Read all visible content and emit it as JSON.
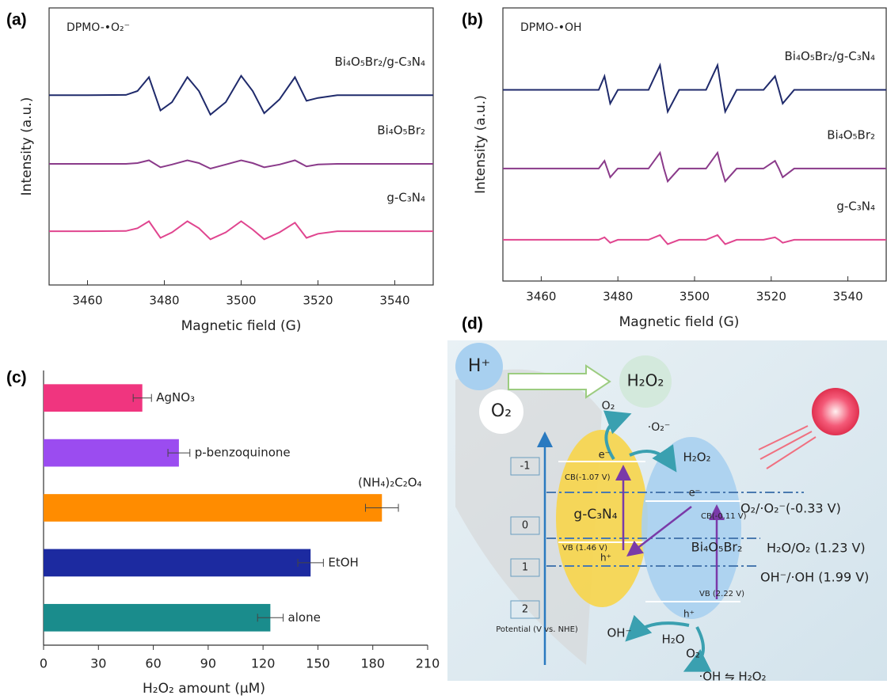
{
  "chart_data": [
    {
      "panel_label": "(a)",
      "type": "line",
      "annotation": "DPMO-•O₂⁻",
      "x_label": "Magnetic field (G)",
      "y_label": "Intensity (a.u.)",
      "xlim": [
        3450,
        3550
      ],
      "xticks": [
        3460,
        3480,
        3500,
        3520,
        3540
      ],
      "ylim": [
        0,
        100
      ],
      "x": [
        3450,
        3460,
        3470,
        3473,
        3476,
        3479,
        3482,
        3486,
        3489,
        3492,
        3496,
        3500,
        3503,
        3506,
        3510,
        3514,
        3517,
        3520,
        3525,
        3535,
        3550
      ],
      "series": [
        {
          "name": "Bi₄O₅Br₂/g-C₃N₄",
          "color": "#1f2a6b",
          "values": [
            68.5,
            68.5,
            68.6,
            70,
            75,
            63,
            66,
            75,
            70,
            61.5,
            66,
            75.5,
            70,
            62,
            67,
            75,
            66.5,
            67.5,
            68.5,
            68.5,
            68.5
          ]
        },
        {
          "name": "Bi₄O₅Br₂",
          "color": "#8a3a8a",
          "values": [
            43.7,
            43.7,
            43.7,
            44,
            45,
            42.5,
            43.5,
            45,
            44,
            42,
            43.5,
            45,
            44,
            42.5,
            43.5,
            45,
            42.8,
            43.5,
            43.7,
            43.7,
            43.7
          ]
        },
        {
          "name": "g-C₃N₄",
          "color": "#e0458f",
          "values": [
            19.4,
            19.4,
            19.5,
            20.5,
            23,
            17,
            19,
            23,
            20.5,
            16.5,
            19,
            23,
            20,
            16.5,
            19,
            22.5,
            17,
            18.5,
            19.4,
            19.4,
            19.4
          ]
        }
      ]
    },
    {
      "panel_label": "(b)",
      "type": "line",
      "annotation": "DPMO-•OH",
      "x_label": "Magnetic field (G)",
      "y_label": "Intensity (a.u.)",
      "xlim": [
        3450,
        3550
      ],
      "xticks": [
        3460,
        3480,
        3500,
        3520,
        3540
      ],
      "ylim": [
        0,
        100
      ],
      "x": [
        3450,
        3465,
        3475,
        3476.5,
        3478,
        3480,
        3488,
        3491,
        3492,
        3493,
        3496,
        3503,
        3506,
        3507,
        3508,
        3511,
        3518,
        3521,
        3522,
        3523,
        3526,
        3540,
        3550
      ],
      "series": [
        {
          "name": "Bi₄O₅Br₂/g-C₃N₄",
          "color": "#1f2a6b",
          "values": [
            70,
            70,
            70,
            75,
            65,
            70,
            70,
            79,
            70,
            62,
            70,
            70,
            79,
            70,
            62,
            70,
            70,
            75,
            70,
            65,
            70,
            70,
            70
          ]
        },
        {
          "name": "Bi₄O₅Br₂",
          "color": "#8a3a8a",
          "values": [
            41.2,
            41.2,
            41.2,
            44,
            38,
            41.2,
            41.2,
            47,
            41.2,
            36.5,
            41.2,
            41.2,
            47,
            41.2,
            36.5,
            41.2,
            41.2,
            44,
            41.2,
            38,
            41.2,
            41.2,
            41.2
          ]
        },
        {
          "name": "g-C₃N₄",
          "color": "#e0458f",
          "values": [
            15.1,
            15.1,
            15.1,
            16,
            14,
            15.1,
            15.1,
            16.8,
            15.1,
            13.5,
            15.1,
            15.1,
            16.8,
            15.1,
            13.5,
            15.1,
            15.1,
            16,
            15.1,
            14,
            15.1,
            15.1,
            15.1
          ]
        }
      ]
    },
    {
      "panel_label": "(c)",
      "type": "bar",
      "orientation": "horizontal",
      "x_label": "H₂O₂ amount (μM)",
      "categories": [
        "AgNO₃",
        "p-benzoquinone",
        "(NH₄)₂C₂O₄",
        "EtOH",
        "alone"
      ],
      "values": [
        54,
        74,
        185,
        146,
        124
      ],
      "errors": [
        5,
        6,
        9,
        7,
        7
      ],
      "colors": [
        "#f0357f",
        "#9b4cf0",
        "#ff8c00",
        "#1c2aa0",
        "#1a8c8c"
      ],
      "xlim": [
        0,
        210
      ],
      "xticks": [
        0,
        30,
        60,
        90,
        120,
        150,
        180,
        210
      ]
    }
  ],
  "diagram": {
    "panel_label": "(d)",
    "labels": [
      "H⁺",
      "H₂O₂",
      "O₂",
      "O₂",
      "·O₂⁻",
      "e⁻",
      "H₂O₂",
      "CB(-1.07 V)",
      "g-C₃N₄",
      "VB (1.46 V)",
      "h⁺",
      "e⁻",
      "CB(-0.11 V)",
      "Bi₄O₅Br₂",
      "VB (2.22 V)",
      "h⁺",
      "O₂/·O₂⁻(-0.33 V)",
      "H₂O/O₂ (1.23 V)",
      "OH⁻/·OH (1.99 V)",
      "-1",
      "0",
      "1",
      "2",
      "Potential (V vs. NHE)",
      "OH⁻",
      "H₂O",
      "O₂",
      "·OH ⇋ H₂O₂"
    ]
  }
}
